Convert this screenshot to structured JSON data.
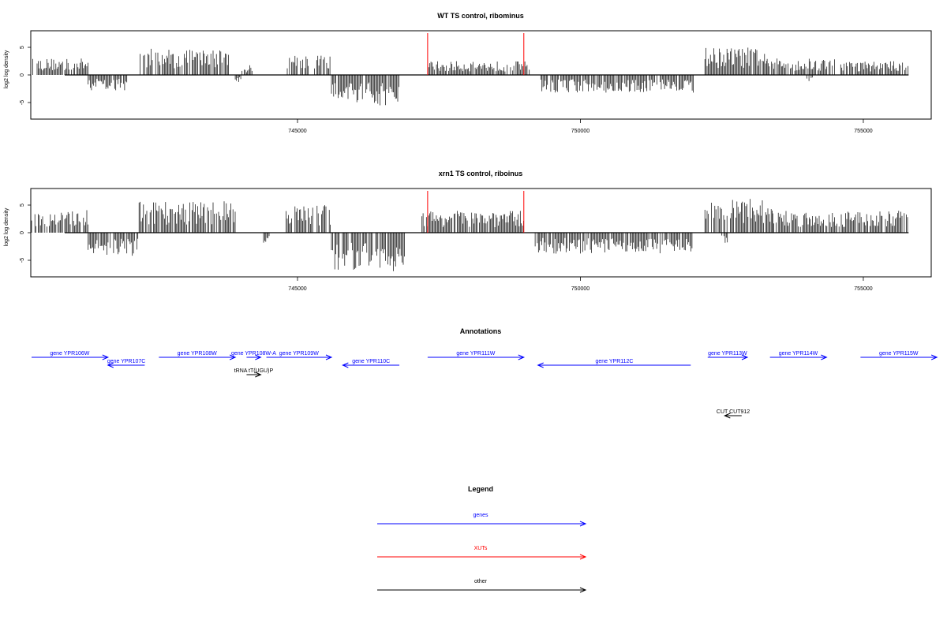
{
  "chart_data": [
    {
      "type": "bar",
      "title": "WT TS control, ribominus",
      "ylabel": "log2 log density",
      "xlim": [
        740300,
        756200
      ],
      "ylim": [
        -8,
        8
      ],
      "yticks": [
        -5,
        0,
        5
      ],
      "xticks": [
        745000,
        750000,
        755000
      ],
      "markers": [
        747300,
        749000
      ],
      "marker_color": "#ff0000",
      "series": [
        {
          "strand": "+",
          "segments": [
            {
              "range": [
                740300,
                741300
              ],
              "amp": 3.0
            },
            {
              "range": [
                742200,
                743800
              ],
              "amp": 4.8
            },
            {
              "range": [
                744000,
                744200
              ],
              "amp": 1.8
            },
            {
              "range": [
                744800,
                745200
              ],
              "amp": 4.0
            },
            {
              "range": [
                745300,
                745600
              ],
              "amp": 3.5
            },
            {
              "range": [
                747300,
                749100
              ],
              "amp": 2.5
            },
            {
              "range": [
                752200,
                753300
              ],
              "amp": 5.0
            },
            {
              "range": [
                753300,
                754500
              ],
              "amp": 3.0
            },
            {
              "range": [
                754600,
                755800
              ],
              "amp": 2.5
            }
          ]
        },
        {
          "strand": "-",
          "segments": [
            {
              "range": [
                741300,
                742000
              ],
              "amp": 2.8
            },
            {
              "range": [
                743900,
                744000
              ],
              "amp": 1.5
            },
            {
              "range": [
                745600,
                746800
              ],
              "amp": 5.5
            },
            {
              "range": [
                749300,
                752000
              ],
              "amp": 3.2
            },
            {
              "range": [
                754000,
                754100
              ],
              "amp": 1.5
            }
          ]
        }
      ]
    },
    {
      "type": "bar",
      "title": "xrn1 TS control, riboinus",
      "ylabel": "log2 log density",
      "xlim": [
        740300,
        756200
      ],
      "ylim": [
        -8,
        8
      ],
      "yticks": [
        -5,
        0,
        5
      ],
      "xticks": [
        745000,
        750000,
        755000
      ],
      "markers": [
        747300,
        749000
      ],
      "marker_color": "#ff0000",
      "series": [
        {
          "strand": "+",
          "segments": [
            {
              "range": [
                740300,
                741300
              ],
              "amp": 4.2
            },
            {
              "range": [
                742200,
                743900
              ],
              "amp": 5.8
            },
            {
              "range": [
                744800,
                745600
              ],
              "amp": 5.0
            },
            {
              "range": [
                747200,
                749000
              ],
              "amp": 4.0
            },
            {
              "range": [
                752200,
                753400
              ],
              "amp": 6.2
            },
            {
              "range": [
                753400,
                755800
              ],
              "amp": 4.0
            }
          ]
        },
        {
          "strand": "-",
          "segments": [
            {
              "range": [
                741300,
                742200
              ],
              "amp": 4.2
            },
            {
              "range": [
                744400,
                744500
              ],
              "amp": 2.0
            },
            {
              "range": [
                745600,
                746900
              ],
              "amp": 7.0
            },
            {
              "range": [
                749200,
                752000
              ],
              "amp": 3.8
            },
            {
              "range": [
                752500,
                752600
              ],
              "amp": 2.0
            }
          ]
        }
      ]
    },
    {
      "type": "annotation-track",
      "title": "Annotations",
      "features": [
        {
          "label": "gene YPR106W",
          "range": [
            740300,
            741650
          ],
          "strand": "+",
          "row": 0,
          "color": "#0000ff"
        },
        {
          "label": "gene YPR107C",
          "range": [
            741650,
            742300
          ],
          "strand": "-",
          "row": 1,
          "color": "#0000ff"
        },
        {
          "label": "gene YPR108W",
          "range": [
            742550,
            743900
          ],
          "strand": "+",
          "row": 0,
          "color": "#0000ff"
        },
        {
          "label": "gene YPR108W-A",
          "range": [
            744100,
            744350
          ],
          "strand": "+",
          "row": 0,
          "color": "#0000ff"
        },
        {
          "label": "gene YPR109W",
          "range": [
            744450,
            745600
          ],
          "strand": "+",
          "row": 0,
          "color": "#0000ff"
        },
        {
          "label": "gene YPR110C",
          "range": [
            745800,
            746800
          ],
          "strand": "-",
          "row": 1,
          "color": "#0000ff"
        },
        {
          "label": "gene YPR111W",
          "range": [
            747300,
            749000
          ],
          "strand": "+",
          "row": 0,
          "color": "#0000ff"
        },
        {
          "label": "gene YPR112C",
          "range": [
            749250,
            751950
          ],
          "strand": "-",
          "row": 1,
          "color": "#0000ff"
        },
        {
          "label": "gene YPR113W",
          "range": [
            752250,
            752950
          ],
          "strand": "+",
          "row": 0,
          "color": "#0000ff"
        },
        {
          "label": "gene YPR114W",
          "range": [
            753350,
            754350
          ],
          "strand": "+",
          "row": 0,
          "color": "#0000ff"
        },
        {
          "label": "gene YPR115W",
          "range": [
            754950,
            756300
          ],
          "strand": "+",
          "row": 0,
          "color": "#0000ff"
        },
        {
          "label": "tRNA tT(UGU)P",
          "range": [
            744100,
            744350
          ],
          "strand": "+",
          "row": 2,
          "color": "#000000"
        },
        {
          "label": "CUT CUT912",
          "range": [
            752550,
            752850
          ],
          "strand": "-",
          "row": 3,
          "color": "#000000"
        }
      ]
    },
    {
      "type": "legend",
      "title": "Legend",
      "entries": [
        {
          "label": "genes",
          "color": "#0000ff"
        },
        {
          "label": "XUTs",
          "color": "#ff0000"
        },
        {
          "label": "other",
          "color": "#000000"
        }
      ]
    }
  ]
}
